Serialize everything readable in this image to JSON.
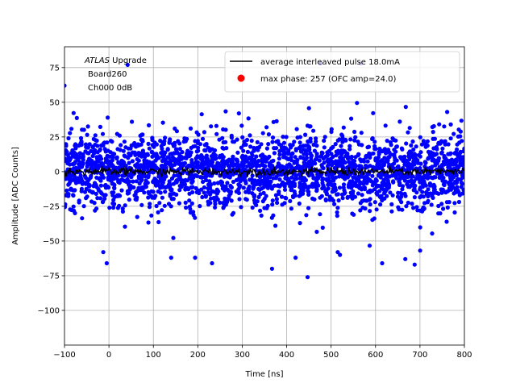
{
  "chart_data": {
    "type": "scatter",
    "xlabel": "Time [ns]",
    "ylabel": "Amplitude [ADC Counts]",
    "xlim": [
      -100,
      800
    ],
    "ylim": [
      -125,
      90
    ],
    "x_ticks": [
      -100,
      0,
      100,
      200,
      300,
      400,
      500,
      600,
      700,
      800
    ],
    "y_ticks": [
      -100,
      -75,
      -50,
      -25,
      0,
      25,
      50,
      75
    ],
    "grid": true,
    "legend_position": "top-right",
    "annotation": {
      "line1_italic": "ATLAS",
      "line1_rest": " Upgrade",
      "line2": "Board260",
      "line3": "Ch000 0dB"
    },
    "series": [
      {
        "name": "average interleaved pulse 18.0mA",
        "type": "line",
        "color": "#000000",
        "x_range": [
          -100,
          800
        ],
        "approx_mean": 0,
        "approx_jitter": 2.5
      },
      {
        "name": "max phase: 257 (OFC amp=24.0)",
        "type": "scatter",
        "color": "#ff0000",
        "points": []
      },
      {
        "name": "",
        "type": "scatter",
        "color": "#0000ff",
        "x_range": [
          -100,
          800
        ],
        "core_band": [
          -30,
          30
        ],
        "outlier_range": [
          -76,
          78
        ],
        "outliers": [
          {
            "x": -100,
            "y": 62
          },
          {
            "x": 42,
            "y": 77
          },
          {
            "x": 476,
            "y": 78
          },
          {
            "x": 567,
            "y": 78
          },
          {
            "x": -5,
            "y": -66
          },
          {
            "x": 140,
            "y": -62
          },
          {
            "x": 194,
            "y": -62
          },
          {
            "x": 232,
            "y": -66
          },
          {
            "x": 367,
            "y": -70
          },
          {
            "x": 420,
            "y": -62
          },
          {
            "x": 447,
            "y": -76
          },
          {
            "x": 520,
            "y": -60
          },
          {
            "x": 615,
            "y": -66
          },
          {
            "x": 667,
            "y": -63
          },
          {
            "x": 688,
            "y": -67
          }
        ]
      }
    ]
  }
}
